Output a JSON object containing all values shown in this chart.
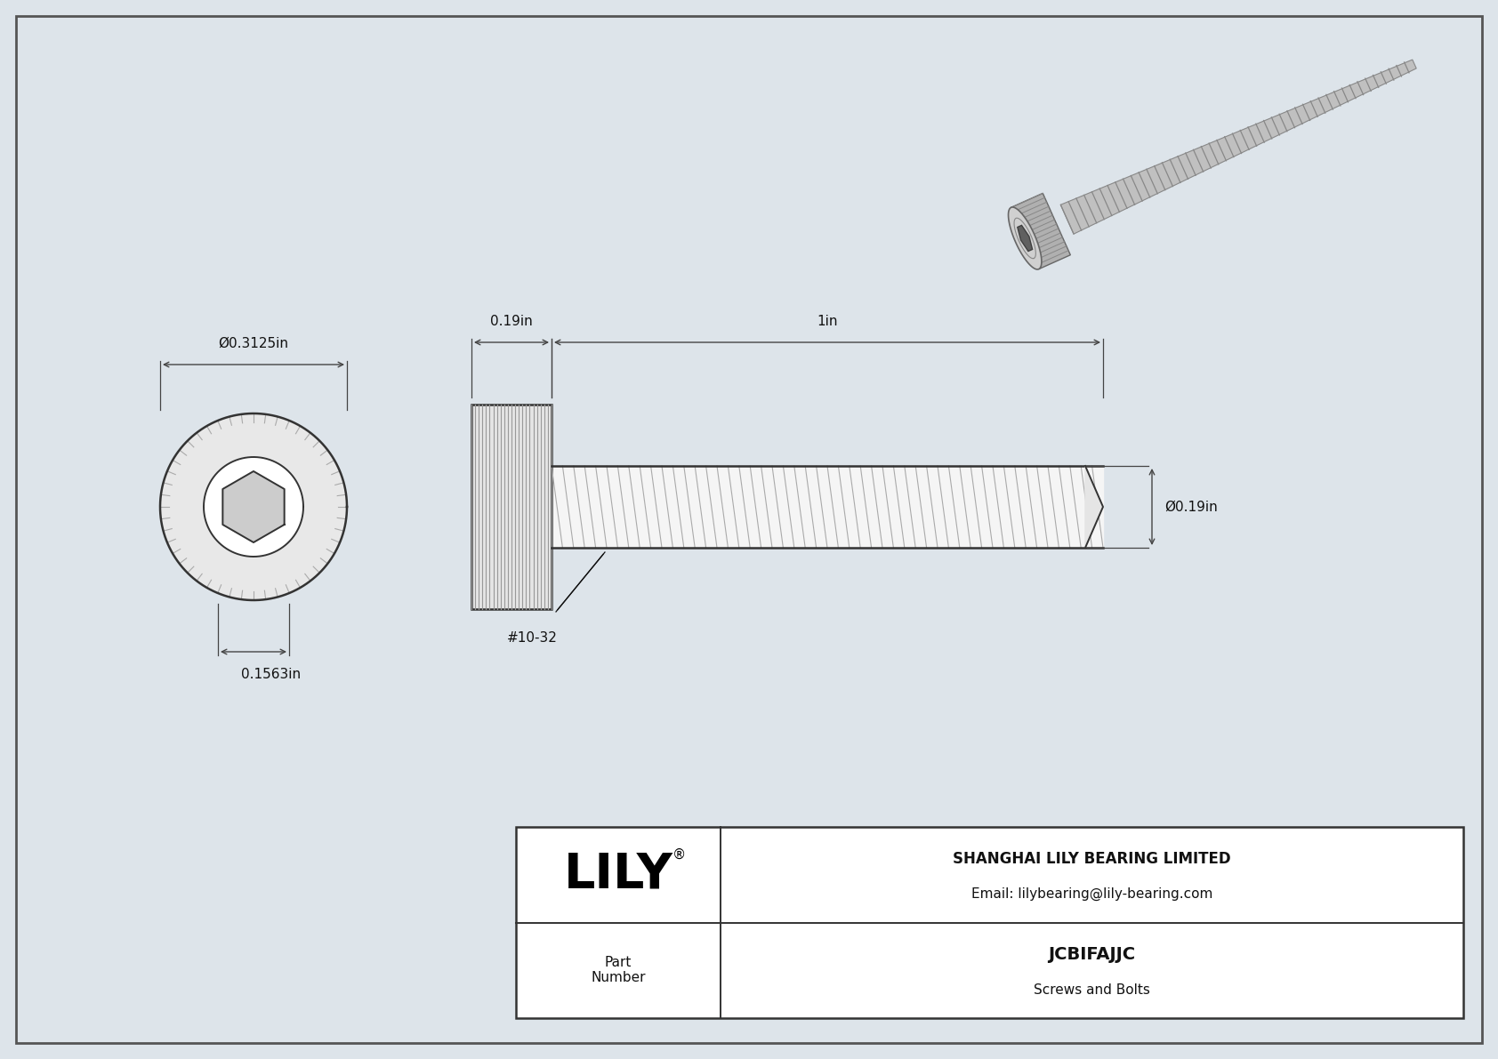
{
  "bg_color": "#dde4ea",
  "drawing_bg": "#dde4ea",
  "border_color": "#222222",
  "line_color": "#333333",
  "dim_color": "#444444",
  "text_color": "#111111",
  "title": "JCBIFAJJC",
  "subtitle": "Screws and Bolts",
  "company": "SHANGHAI LILY BEARING LIMITED",
  "email": "Email: lilybearing@lily-bearing.com",
  "part_label": "Part\nNumber",
  "dim_head_diameter": "Ø0.3125in",
  "dim_hex_width": "0.1563in",
  "dim_head_length": "0.19in",
  "dim_shaft_length": "1in",
  "dim_shaft_diameter": "Ø0.19in",
  "thread_label": "#10-32"
}
